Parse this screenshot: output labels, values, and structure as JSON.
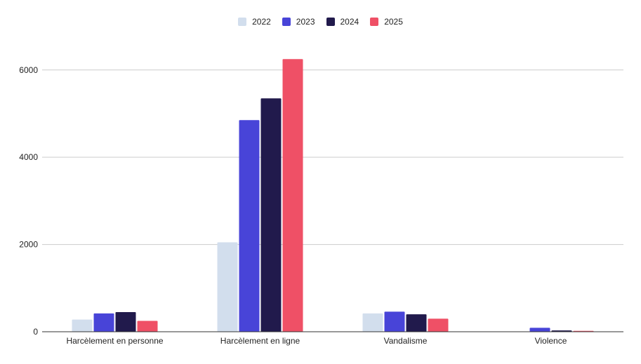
{
  "chart_data": {
    "type": "bar",
    "title": "",
    "xlabel": "",
    "ylabel": "",
    "categories": [
      "Harcèlement en personne",
      "Harcèlement en ligne",
      "Vandalisme",
      "Violence"
    ],
    "series": [
      {
        "name": "2022",
        "color": "#d2deed",
        "values": [
          280,
          2050,
          420,
          5
        ]
      },
      {
        "name": "2023",
        "color": "#4844d8",
        "values": [
          420,
          4850,
          460,
          90
        ]
      },
      {
        "name": "2024",
        "color": "#211a4c",
        "values": [
          450,
          5350,
          400,
          30
        ]
      },
      {
        "name": "2025",
        "color": "#ef5066",
        "values": [
          250,
          6250,
          300,
          20
        ]
      }
    ],
    "ylim": [
      0,
      6800
    ],
    "yticks": [
      0,
      2000,
      4000,
      6000
    ],
    "grid": true,
    "legend_position": "top-center"
  }
}
